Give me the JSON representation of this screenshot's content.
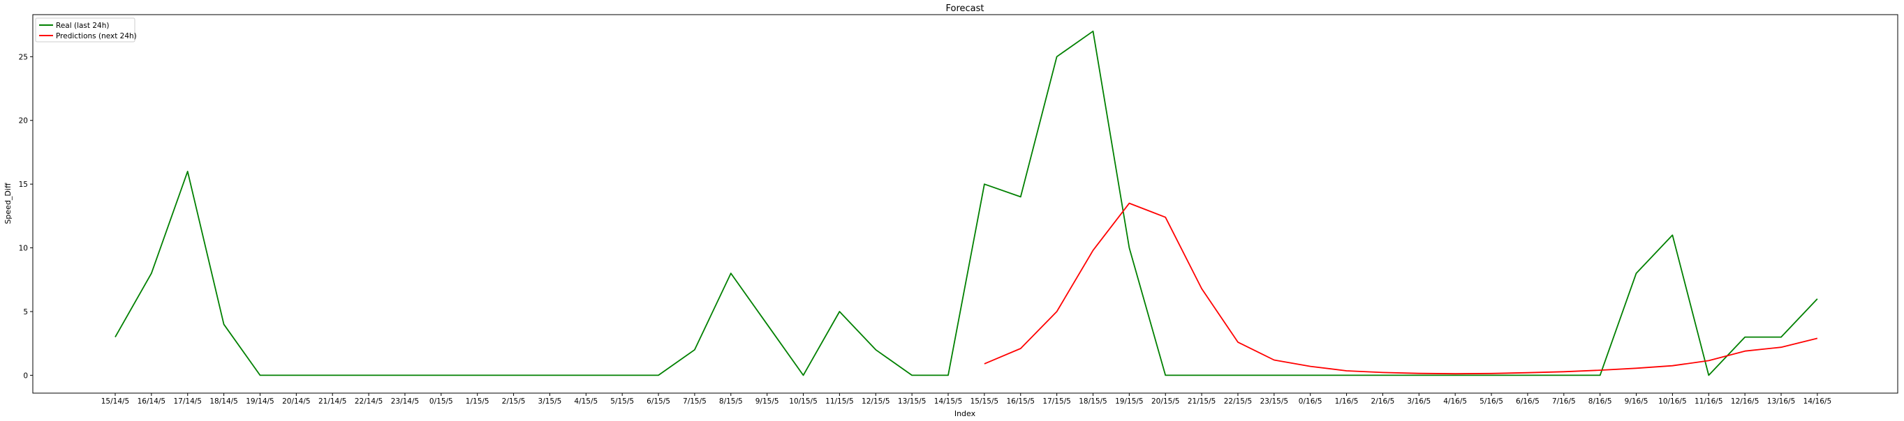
{
  "chart_data": {
    "type": "line",
    "title": "Forecast",
    "xlabel": "Index",
    "ylabel": "Speed_Diff",
    "ylim": [
      -1.4,
      28.3
    ],
    "yticks": [
      0,
      5,
      10,
      15,
      20,
      25
    ],
    "grid": false,
    "legend_position": "top-left",
    "categories": [
      "15/14/5",
      "16/14/5",
      "17/14/5",
      "18/14/5",
      "19/14/5",
      "20/14/5",
      "21/14/5",
      "22/14/5",
      "23/14/5",
      "0/15/5",
      "1/15/5",
      "2/15/5",
      "3/15/5",
      "4/15/5",
      "5/15/5",
      "6/15/5",
      "7/15/5",
      "8/15/5",
      "9/15/5",
      "10/15/5",
      "11/15/5",
      "12/15/5",
      "13/15/5",
      "14/15/5",
      "15/15/5",
      "16/15/5",
      "17/15/5",
      "18/15/5",
      "19/15/5",
      "20/15/5",
      "21/15/5",
      "22/15/5",
      "23/15/5",
      "0/16/5",
      "1/16/5",
      "2/16/5",
      "3/16/5",
      "4/16/5",
      "5/16/5",
      "6/16/5",
      "7/16/5",
      "8/16/5",
      "9/16/5",
      "10/16/5",
      "11/16/5",
      "12/16/5",
      "13/16/5",
      "14/16/5"
    ],
    "series": [
      {
        "name": "Real (last 24h)",
        "color": "#008000",
        "values": [
          3,
          8,
          16,
          4,
          0,
          0,
          0,
          0,
          0,
          0,
          0,
          0,
          0,
          0,
          0,
          0,
          2,
          8,
          4,
          0,
          5,
          2,
          0,
          0,
          15,
          14,
          25,
          27,
          10,
          0,
          0,
          0,
          0,
          0,
          0,
          0,
          0,
          0,
          0,
          0,
          0,
          0,
          8,
          11,
          0,
          3,
          3,
          6
        ]
      },
      {
        "name": "Predictions (next 24h)",
        "color": "#ff0000",
        "values": [
          null,
          null,
          null,
          null,
          null,
          null,
          null,
          null,
          null,
          null,
          null,
          null,
          null,
          null,
          null,
          null,
          null,
          null,
          null,
          null,
          null,
          null,
          null,
          null,
          0.9,
          2.1,
          5.0,
          9.8,
          13.5,
          12.4,
          6.8,
          2.6,
          1.2,
          0.7,
          0.35,
          0.22,
          0.15,
          0.12,
          0.14,
          0.2,
          0.28,
          0.4,
          0.55,
          0.75,
          1.15,
          1.9,
          2.2,
          2.9
        ]
      }
    ]
  }
}
